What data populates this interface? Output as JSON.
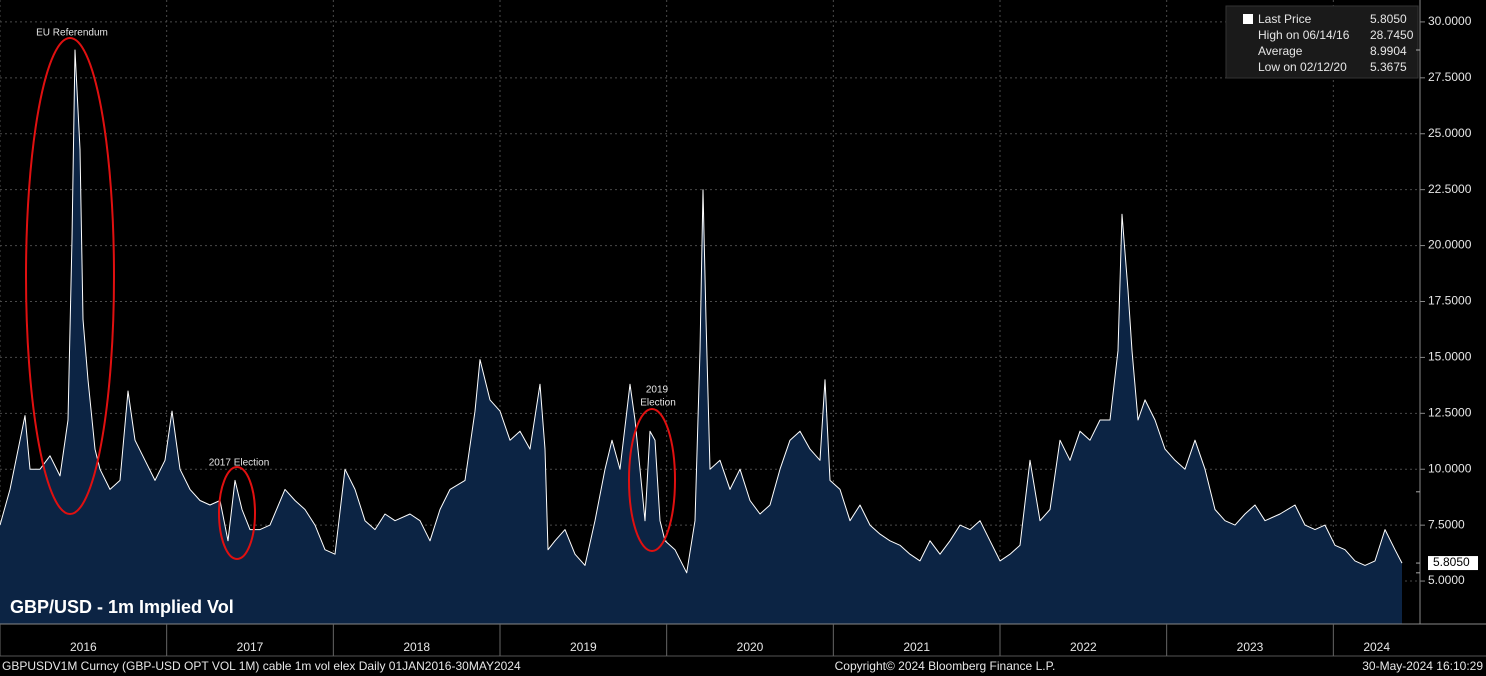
{
  "chart_data": {
    "type": "area",
    "title": "GBP/USD - 1m Implied Vol",
    "color": "#ffffff",
    "fill_color": "#0c2444",
    "x": [
      2016.0,
      2016.06,
      2016.12,
      2016.15,
      2016.18,
      2016.24,
      2016.3,
      2016.36,
      2016.408,
      2016.432,
      2016.45,
      2016.48,
      2016.498,
      2016.528,
      2016.57,
      2016.6,
      2016.66,
      2016.72,
      2016.768,
      2016.81,
      2016.87,
      2016.93,
      2016.99,
      2017.032,
      2017.08,
      2017.14,
      2017.2,
      2017.26,
      2017.32,
      2017.368,
      2017.41,
      2017.452,
      2017.5,
      2017.56,
      2017.62,
      2017.71,
      2017.77,
      2017.83,
      2017.89,
      2017.95,
      2018.01,
      2018.07,
      2018.13,
      2018.19,
      2018.25,
      2018.31,
      2018.37,
      2018.46,
      2018.52,
      2018.58,
      2018.64,
      2018.7,
      2018.79,
      2018.85,
      2018.88,
      2018.94,
      2019.0,
      2019.06,
      2019.12,
      2019.18,
      2019.24,
      2019.27,
      2019.288,
      2019.33,
      2019.39,
      2019.45,
      2019.51,
      2019.57,
      2019.63,
      2019.672,
      2019.72,
      2019.78,
      2019.81,
      2019.84,
      2019.87,
      2019.9,
      2019.93,
      2019.96,
      2019.99,
      2020.05,
      2020.12,
      2020.17,
      2020.2,
      2020.218,
      2020.236,
      2020.26,
      2020.32,
      2020.38,
      2020.44,
      2020.5,
      2020.56,
      2020.62,
      2020.68,
      2020.74,
      2020.8,
      2020.86,
      2020.92,
      2020.95,
      2020.98,
      2021.04,
      2021.1,
      2021.16,
      2021.22,
      2021.28,
      2021.34,
      2021.4,
      2021.46,
      2021.52,
      2021.58,
      2021.64,
      2021.7,
      2021.76,
      2021.82,
      2021.88,
      2021.94,
      2022.0,
      2022.06,
      2022.12,
      2022.18,
      2022.24,
      2022.3,
      2022.36,
      2022.42,
      2022.48,
      2022.54,
      2022.6,
      2022.66,
      2022.708,
      2022.732,
      2022.768,
      2022.792,
      2022.828,
      2022.87,
      2022.93,
      2022.99,
      2023.05,
      2023.11,
      2023.17,
      2023.23,
      2023.29,
      2023.35,
      2023.41,
      2023.47,
      2023.53,
      2023.59,
      2023.68,
      2023.77,
      2023.83,
      2023.89,
      2023.95,
      2024.01,
      2024.07,
      2024.13,
      2024.19,
      2024.25,
      2024.31,
      2024.37,
      2024.412
    ],
    "values": [
      7.5,
      9.1,
      11.3,
      12.4,
      10.0,
      10.0,
      10.6,
      9.7,
      12.2,
      20.3,
      28.745,
      24.3,
      16.7,
      14.0,
      10.9,
      10.0,
      9.1,
      9.5,
      13.5,
      11.3,
      10.4,
      9.5,
      10.4,
      12.6,
      10.0,
      9.1,
      8.6,
      8.4,
      8.6,
      6.8,
      9.5,
      8.2,
      7.3,
      7.3,
      7.5,
      9.1,
      8.6,
      8.2,
      7.5,
      6.4,
      6.2,
      10.0,
      9.1,
      7.7,
      7.3,
      8.0,
      7.7,
      8.0,
      7.7,
      6.8,
      8.2,
      9.1,
      9.5,
      12.6,
      14.9,
      13.1,
      12.6,
      11.3,
      11.7,
      10.9,
      13.8,
      10.9,
      6.4,
      6.8,
      7.3,
      6.2,
      5.7,
      7.7,
      10.0,
      11.3,
      10.0,
      13.8,
      12.2,
      10.0,
      7.7,
      11.7,
      11.3,
      7.7,
      6.8,
      6.4,
      5.3675,
      7.7,
      15.3,
      22.5,
      16.7,
      10.0,
      10.4,
      9.1,
      10.0,
      8.6,
      8.0,
      8.4,
      10.0,
      11.3,
      11.7,
      10.9,
      10.4,
      14.0,
      9.5,
      9.1,
      7.7,
      8.4,
      7.5,
      7.1,
      6.8,
      6.6,
      6.2,
      5.9,
      6.8,
      6.2,
      6.8,
      7.5,
      7.3,
      7.7,
      6.8,
      5.9,
      6.2,
      6.6,
      10.4,
      7.7,
      8.2,
      11.3,
      10.4,
      11.7,
      11.3,
      12.2,
      12.2,
      15.3,
      21.4,
      18.0,
      15.3,
      12.2,
      13.1,
      12.2,
      10.9,
      10.4,
      10.0,
      11.3,
      10.0,
      8.2,
      7.7,
      7.5,
      8.0,
      8.4,
      7.7,
      8.0,
      8.4,
      7.5,
      7.3,
      7.5,
      6.6,
      6.4,
      5.9,
      5.7,
      5.9,
      7.3,
      6.4,
      5.805
    ],
    "xlim": [
      2016,
      2024.52
    ],
    "xticks": [
      2016,
      2017,
      2018,
      2019,
      2020,
      2021,
      2022,
      2023,
      2024
    ],
    "ylim": [
      3.08,
      30.98
    ],
    "yticks": [
      {
        "value": 5,
        "label": "5.0000"
      },
      {
        "value": 7.5,
        "label": "7.5000"
      },
      {
        "value": 10,
        "label": "10.0000"
      },
      {
        "value": 12.5,
        "label": "12.5000"
      },
      {
        "value": 15,
        "label": "15.0000"
      },
      {
        "value": 17.5,
        "label": "17.5000"
      },
      {
        "value": 20,
        "label": "20.0000"
      },
      {
        "value": 22.5,
        "label": "22.5000"
      },
      {
        "value": 25,
        "label": "25.0000"
      },
      {
        "value": 27.5,
        "label": "27.5000"
      },
      {
        "value": 30,
        "label": "30.0000"
      }
    ],
    "grid": true,
    "legend_position": "top-right",
    "stats": {
      "labels": [
        "Last Price",
        "High on 06/14/16",
        "Average",
        "Low on 02/12/20"
      ],
      "values": [
        5.805,
        28.745,
        8.9904,
        5.3675
      ],
      "value_labels": [
        "5.8050",
        "28.7450",
        "8.9904",
        "5.3675"
      ]
    },
    "annotations": [
      "EU Referendum",
      "2017 Election",
      "2019",
      "Election"
    ],
    "footer": {
      "left": "GBPUSDV1M Curncy (GBP-USD OPT VOL 1M) cable 1m vol elex  Daily 01JAN2016-30MAY2024",
      "center": "Copyright© 2024 Bloomberg Finance L.P.",
      "right": "30-May-2024 16:10:29"
    }
  }
}
